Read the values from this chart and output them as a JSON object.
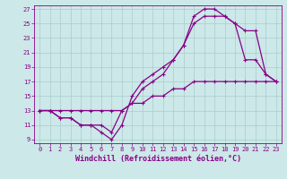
{
  "xlabel": "Windchill (Refroidissement éolien,°C)",
  "bg_color": "#cce8e8",
  "grid_color": "#aacccc",
  "line_color": "#880088",
  "xlim": [
    -0.5,
    23.5
  ],
  "ylim": [
    8.5,
    27.5
  ],
  "xticks": [
    0,
    1,
    2,
    3,
    4,
    5,
    6,
    7,
    8,
    9,
    10,
    11,
    12,
    13,
    14,
    15,
    16,
    17,
    18,
    19,
    20,
    21,
    22,
    23
  ],
  "yticks": [
    9,
    11,
    13,
    15,
    17,
    19,
    21,
    23,
    25,
    27
  ],
  "line1_x": [
    0,
    1,
    2,
    3,
    4,
    5,
    6,
    7,
    8,
    9,
    10,
    11,
    12,
    13,
    14,
    15,
    16,
    17,
    18,
    19,
    20,
    21,
    22,
    23
  ],
  "line1_y": [
    13,
    13,
    12,
    12,
    11,
    11,
    10,
    9,
    11,
    15,
    17,
    18,
    19,
    20,
    22,
    26,
    27,
    27,
    26,
    25,
    20,
    20,
    18,
    17
  ],
  "line2_x": [
    0,
    1,
    2,
    3,
    4,
    5,
    6,
    7,
    8,
    9,
    10,
    11,
    12,
    13,
    14,
    15,
    16,
    17,
    18,
    19,
    20,
    21,
    22,
    23
  ],
  "line2_y": [
    13,
    13,
    12,
    12,
    11,
    11,
    11,
    10,
    13,
    14,
    16,
    17,
    18,
    20,
    22,
    25,
    26,
    26,
    26,
    25,
    24,
    24,
    18,
    17
  ],
  "line3_x": [
    0,
    1,
    2,
    3,
    4,
    5,
    6,
    7,
    8,
    9,
    10,
    11,
    12,
    13,
    14,
    15,
    16,
    17,
    18,
    19,
    20,
    21,
    22,
    23
  ],
  "line3_y": [
    13,
    13,
    13,
    13,
    13,
    13,
    13,
    13,
    13,
    14,
    14,
    15,
    15,
    16,
    16,
    17,
    17,
    17,
    17,
    17,
    17,
    17,
    17,
    17
  ],
  "marker_size": 3.0,
  "linewidth": 0.9,
  "tick_fontsize": 5.0,
  "xlabel_fontsize": 6.0
}
